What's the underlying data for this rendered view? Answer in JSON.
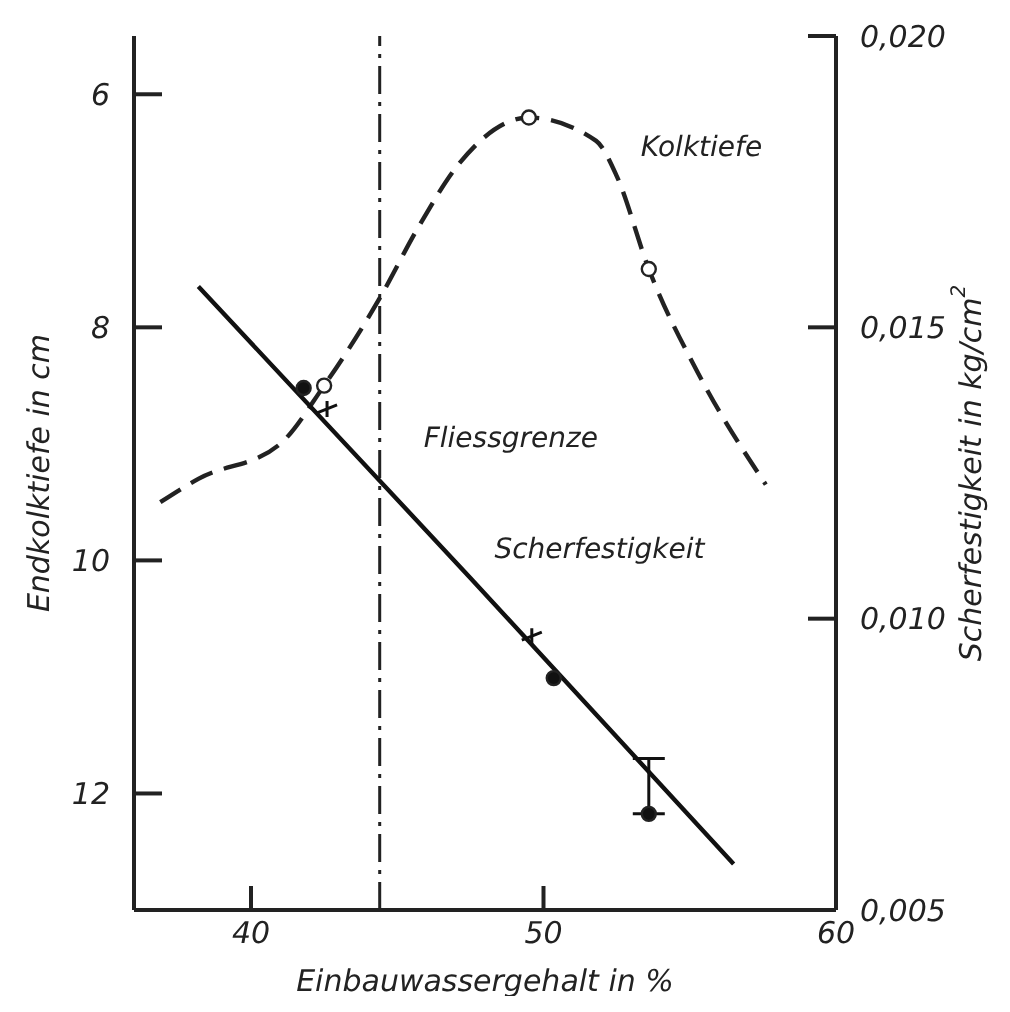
{
  "chart_data": {
    "type": "line",
    "xlabel": "Einbauwassergehalt in %",
    "ylabel": "Endkolktiefe in cm",
    "y2label": "Scherfestigkeit in kg/cm$^{2}$",
    "xlim": [
      36,
      60
    ],
    "xticks": [
      40,
      50,
      60
    ],
    "ylim": [
      13,
      5.5
    ],
    "yticks": [
      6,
      8,
      10,
      12
    ],
    "y2lim": [
      0.005,
      0.02
    ],
    "y2ticks": [
      {
        "value": 0.005,
        "label": "0,005"
      },
      {
        "value": 0.01,
        "label": "0,010"
      },
      {
        "value": 0.015,
        "label": "0,015"
      },
      {
        "value": 0.02,
        "label": "0,020"
      }
    ],
    "grid": false,
    "legend": false,
    "ref_lines": [
      {
        "axis": "x",
        "value": 44.4,
        "label": "Fliessgrenze",
        "color": "#222222",
        "line_style": "dashed"
      }
    ],
    "series": [
      {
        "name": "Kolktiefe",
        "color": "#222222",
        "line_style": "dashed",
        "marker": "none",
        "x": [
          36.9,
          38.2,
          41.0,
          42.5,
          44.4,
          45.7,
          47.1,
          49.5,
          51.8,
          52.5,
          53.6,
          55.3,
          57.6
        ],
        "values": [
          9.5,
          9.3,
          9.0,
          8.5,
          7.75,
          7.15,
          6.6,
          6.2,
          6.4,
          6.7,
          7.5,
          8.4,
          9.35
        ]
      },
      {
        "type": "scatter",
        "color": "#ffffff",
        "marker": "circle",
        "x": [
          42.5,
          49.5,
          53.6
        ],
        "values": [
          8.5,
          6.2,
          7.5
        ]
      },
      {
        "name": "Scherfestigkeit",
        "axis": "y2",
        "color": "#111111",
        "line_style": "solid",
        "marker": "none",
        "x": [
          38.2,
          47.5,
          56.5
        ],
        "values": [
          0.0157,
          0.0107,
          0.00579
        ]
      },
      {
        "type": "scatter",
        "axis": "y2",
        "color": "#111111",
        "marker": "circle",
        "x": [
          41.8,
          50.35,
          53.6
        ],
        "values": [
          0.01396,
          0.00898,
          0.00665
        ],
        "errors": [
          null,
          null,
          [
            0.00665,
            0.0076
          ]
        ]
      },
      {
        "type": "scatter",
        "axis": "y2",
        "color": "#111111",
        "marker": "cross",
        "x": [
          42.6,
          49.6
        ],
        "values": [
          0.0136,
          0.0097
        ]
      }
    ]
  }
}
